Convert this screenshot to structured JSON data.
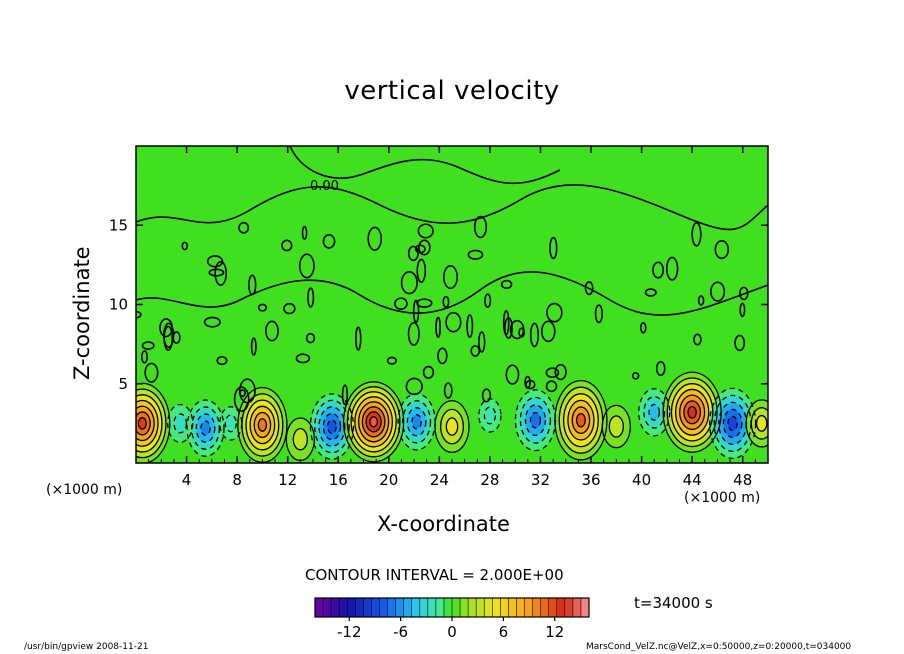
{
  "chart_data": {
    "type": "heatmap",
    "title": "vertical velocity",
    "xlabel": "X-coordinate",
    "ylabel": "Z-coordinate",
    "x_unit": "(×1000 m)",
    "xlim": [
      0,
      50
    ],
    "ylim": [
      0,
      20
    ],
    "x_ticks": [
      4,
      8,
      12,
      16,
      20,
      24,
      28,
      32,
      36,
      40,
      44,
      48
    ],
    "y_ticks": [
      5,
      10,
      15
    ],
    "contour_interval_text": "CONTOUR INTERVAL = 2.000E+00",
    "contour_annotation": "0.00",
    "colorbar": {
      "range": [
        -16,
        16
      ],
      "ticks": [
        -12,
        -6,
        0,
        6,
        12
      ]
    },
    "cells": [
      {
        "x": 0.5,
        "z": 2.5,
        "w": 13
      },
      {
        "x": 3.5,
        "z": 2.5,
        "w": -3
      },
      {
        "x": 5.5,
        "z": 2.2,
        "w": -7
      },
      {
        "x": 7.5,
        "z": 2.5,
        "w": -2
      },
      {
        "x": 10.0,
        "z": 2.4,
        "w": 11
      },
      {
        "x": 13.0,
        "z": 1.5,
        "w": 4
      },
      {
        "x": 15.5,
        "z": 2.3,
        "w": -9
      },
      {
        "x": 18.8,
        "z": 2.6,
        "w": 15
      },
      {
        "x": 22.2,
        "z": 2.6,
        "w": -7
      },
      {
        "x": 25.0,
        "z": 2.3,
        "w": 6
      },
      {
        "x": 28.0,
        "z": 3.0,
        "w": -2
      },
      {
        "x": 31.6,
        "z": 2.7,
        "w": -8
      },
      {
        "x": 35.2,
        "z": 2.7,
        "w": 12
      },
      {
        "x": 38.0,
        "z": 2.3,
        "w": 4
      },
      {
        "x": 41.0,
        "z": 3.2,
        "w": -5
      },
      {
        "x": 44.0,
        "z": 3.2,
        "w": 14
      },
      {
        "x": 47.2,
        "z": 2.5,
        "w": -10
      },
      {
        "x": 49.5,
        "z": 2.5,
        "w": 5
      }
    ]
  },
  "annotations": {
    "time": "t=34000 s",
    "footer_left": "/usr/bin/gpview   2008-11-21",
    "footer_right": "MarsCond_VelZ.nc@VelZ,x=0:50000,z=0:20000,t=034000"
  },
  "colors": {
    "background_field": "#40e020",
    "positive_core": "#d02000",
    "negative_core": "#1060e0"
  }
}
